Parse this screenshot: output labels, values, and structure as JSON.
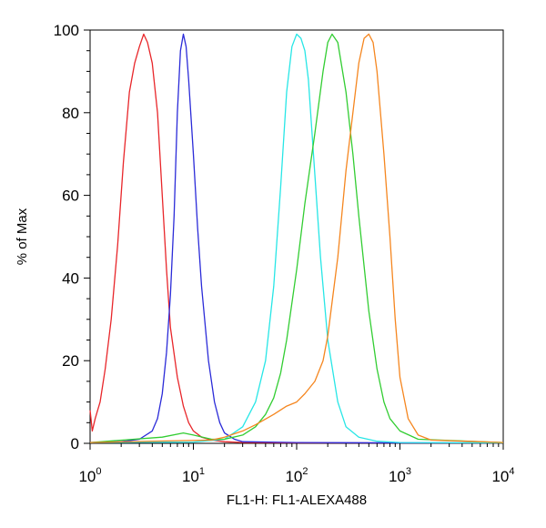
{
  "chart_data": {
    "type": "line",
    "xlabel": "FL1-H: FL1-ALEXA488",
    "ylabel": "% of Max",
    "x_scale": "log",
    "xlim": [
      1,
      10000
    ],
    "ylim": [
      0,
      100
    ],
    "grid": false,
    "x_ticks": [
      {
        "base": "10",
        "exp": "0",
        "value": 1
      },
      {
        "base": "10",
        "exp": "1",
        "value": 10
      },
      {
        "base": "10",
        "exp": "2",
        "value": 100
      },
      {
        "base": "10",
        "exp": "3",
        "value": 1000
      },
      {
        "base": "10",
        "exp": "4",
        "value": 10000
      }
    ],
    "y_ticks": [
      "0",
      "20",
      "40",
      "60",
      "80",
      "100"
    ],
    "series": [
      {
        "color": "#e8262a",
        "x": [
          1.0,
          1.05,
          1.12,
          1.25,
          1.4,
          1.6,
          1.85,
          2.1,
          2.4,
          2.7,
          3.0,
          3.3,
          3.6,
          4.0,
          4.5,
          5.0,
          5.5,
          6.0,
          7.0,
          8.0,
          9.0,
          10,
          12,
          15,
          20,
          30,
          100,
          1000,
          10000
        ],
        "y": [
          8,
          3,
          6,
          10,
          18,
          30,
          48,
          68,
          85,
          92,
          96,
          99,
          97,
          92,
          80,
          60,
          42,
          28,
          16,
          9,
          5,
          3,
          1.5,
          0.8,
          0.4,
          0.2,
          0.1,
          0.1,
          0.1
        ]
      },
      {
        "color": "#2b2bd8",
        "x": [
          1.0,
          2.0,
          3.0,
          4.0,
          4.5,
          5.0,
          5.5,
          6.0,
          6.5,
          7.0,
          7.5,
          8.0,
          8.5,
          9.0,
          10,
          11,
          12,
          14,
          16,
          18,
          20,
          25,
          30,
          100,
          1000,
          10000
        ],
        "y": [
          0.2,
          0.4,
          1,
          3,
          6,
          12,
          22,
          36,
          55,
          80,
          95,
          99,
          96,
          88,
          70,
          52,
          38,
          20,
          10,
          5,
          2.5,
          1,
          0.4,
          0.2,
          0.1,
          0.1
        ]
      },
      {
        "color": "#27e6e6",
        "x": [
          1.0,
          10,
          20,
          30,
          40,
          50,
          60,
          70,
          80,
          90,
          100,
          110,
          120,
          130,
          150,
          170,
          200,
          250,
          300,
          400,
          600,
          1000,
          10000
        ],
        "y": [
          0.2,
          0.3,
          1,
          4,
          10,
          20,
          38,
          62,
          85,
          96,
          99,
          98,
          95,
          88,
          65,
          45,
          25,
          10,
          4,
          1.5,
          0.5,
          0.2,
          0.1
        ]
      },
      {
        "color": "#32cd32",
        "x": [
          1.0,
          5,
          8,
          10,
          15,
          20,
          30,
          40,
          50,
          60,
          70,
          80,
          100,
          120,
          150,
          180,
          200,
          220,
          250,
          300,
          350,
          400,
          500,
          600,
          700,
          800,
          1000,
          1500,
          10000
        ],
        "y": [
          0.2,
          1.5,
          2.5,
          2,
          1,
          1,
          2,
          4,
          7,
          11,
          17,
          25,
          42,
          58,
          75,
          90,
          97,
          99,
          97,
          85,
          70,
          55,
          32,
          18,
          10,
          6,
          3,
          1,
          0.2
        ]
      },
      {
        "color": "#f5861f",
        "x": [
          1.0,
          15,
          20,
          30,
          40,
          60,
          80,
          100,
          120,
          150,
          180,
          200,
          250,
          300,
          350,
          400,
          450,
          500,
          550,
          600,
          700,
          800,
          900,
          1000,
          1200,
          1500,
          2000,
          10000
        ],
        "y": [
          0.2,
          0.8,
          1.5,
          3,
          4.5,
          7,
          9,
          10,
          12,
          15,
          20,
          26,
          45,
          66,
          80,
          92,
          98,
          99,
          97,
          90,
          70,
          50,
          30,
          16,
          6,
          2,
          0.8,
          0.2
        ]
      }
    ]
  }
}
